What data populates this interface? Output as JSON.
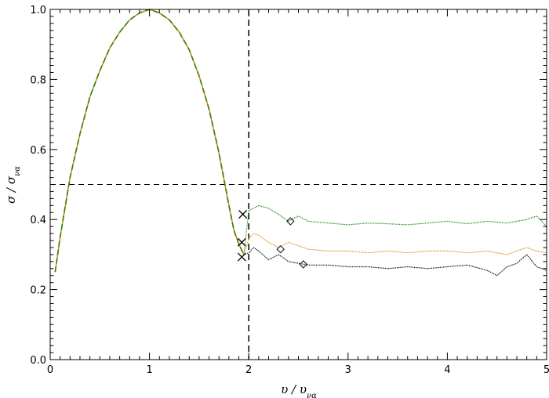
{
  "chart_data": {
    "type": "line",
    "title": "",
    "xlabel": "υ / υ",
    "xlabel_sub": "να",
    "ylabel": "σ / σ",
    "ylabel_sub": "να",
    "xlim": [
      0,
      5
    ],
    "ylim": [
      0,
      1
    ],
    "xticks": [
      0,
      1,
      2,
      3,
      4,
      5
    ],
    "xtick_labels": [
      "0",
      "1",
      "2",
      "3",
      "4",
      "5"
    ],
    "yticks": [
      0.0,
      0.2,
      0.4,
      0.6,
      0.8,
      1.0
    ],
    "ytick_labels": [
      "0.0",
      "0.2",
      "0.4",
      "0.6",
      "0.8",
      "1.0"
    ],
    "grid": false,
    "legend": "none",
    "reference_lines": [
      {
        "orientation": "horizontal",
        "value": 0.5,
        "style": "dashed",
        "color": "#000000"
      },
      {
        "orientation": "vertical",
        "value": 2.0,
        "style": "dashed",
        "color": "#000000"
      }
    ],
    "series": [
      {
        "color": "#1a8a1a",
        "x": [
          2.0,
          2.1,
          2.2,
          2.3,
          2.4,
          2.5,
          2.6,
          2.8,
          3.0,
          3.2,
          3.4,
          3.6,
          3.8,
          4.0,
          4.2,
          4.4,
          4.6,
          4.8,
          4.9,
          5.0
        ],
        "values": [
          0.425,
          0.44,
          0.432,
          0.415,
          0.395,
          0.41,
          0.395,
          0.39,
          0.385,
          0.39,
          0.388,
          0.385,
          0.39,
          0.395,
          0.388,
          0.395,
          0.39,
          0.4,
          0.41,
          0.38
        ],
        "cross": {
          "x": 1.94,
          "y": 0.415
        },
        "diamond": {
          "x": 2.42,
          "y": 0.395
        }
      },
      {
        "color": "#e08a10",
        "x": [
          2.0,
          2.05,
          2.1,
          2.2,
          2.3,
          2.4,
          2.5,
          2.6,
          2.8,
          3.0,
          3.2,
          3.4,
          3.6,
          3.8,
          4.0,
          4.2,
          4.4,
          4.6,
          4.8,
          4.9,
          5.0
        ],
        "values": [
          0.345,
          0.36,
          0.355,
          0.335,
          0.32,
          0.335,
          0.325,
          0.315,
          0.31,
          0.31,
          0.305,
          0.31,
          0.305,
          0.31,
          0.31,
          0.305,
          0.31,
          0.3,
          0.32,
          0.31,
          0.305
        ],
        "cross": {
          "x": 1.93,
          "y": 0.335
        },
        "diamond": {
          "x": 2.32,
          "y": 0.315
        }
      },
      {
        "color": "#000000",
        "x": [
          2.0,
          2.05,
          2.1,
          2.2,
          2.3,
          2.4,
          2.5,
          2.6,
          2.8,
          3.0,
          3.2,
          3.4,
          3.6,
          3.8,
          4.0,
          4.2,
          4.4,
          4.5,
          4.6,
          4.7,
          4.8,
          4.9,
          5.0
        ],
        "values": [
          0.305,
          0.32,
          0.31,
          0.285,
          0.3,
          0.28,
          0.275,
          0.27,
          0.27,
          0.265,
          0.265,
          0.26,
          0.265,
          0.26,
          0.265,
          0.27,
          0.255,
          0.24,
          0.265,
          0.275,
          0.3,
          0.265,
          0.255
        ],
        "cross": {
          "x": 1.93,
          "y": 0.293
        },
        "diamond": {
          "x": 2.55,
          "y": 0.272
        }
      }
    ],
    "shared_curve": {
      "style": "dash-dot",
      "colors": [
        "#1a8a1a",
        "#e08a10"
      ],
      "x": [
        0.05,
        0.1,
        0.2,
        0.3,
        0.4,
        0.5,
        0.6,
        0.7,
        0.8,
        0.9,
        1.0,
        1.1,
        1.2,
        1.3,
        1.4,
        1.5,
        1.6,
        1.7,
        1.8,
        1.85,
        1.9,
        1.95
      ],
      "values": [
        0.25,
        0.35,
        0.52,
        0.645,
        0.75,
        0.825,
        0.89,
        0.935,
        0.97,
        0.99,
        1.0,
        0.99,
        0.97,
        0.935,
        0.885,
        0.81,
        0.715,
        0.59,
        0.44,
        0.37,
        0.33,
        0.3
      ]
    }
  }
}
